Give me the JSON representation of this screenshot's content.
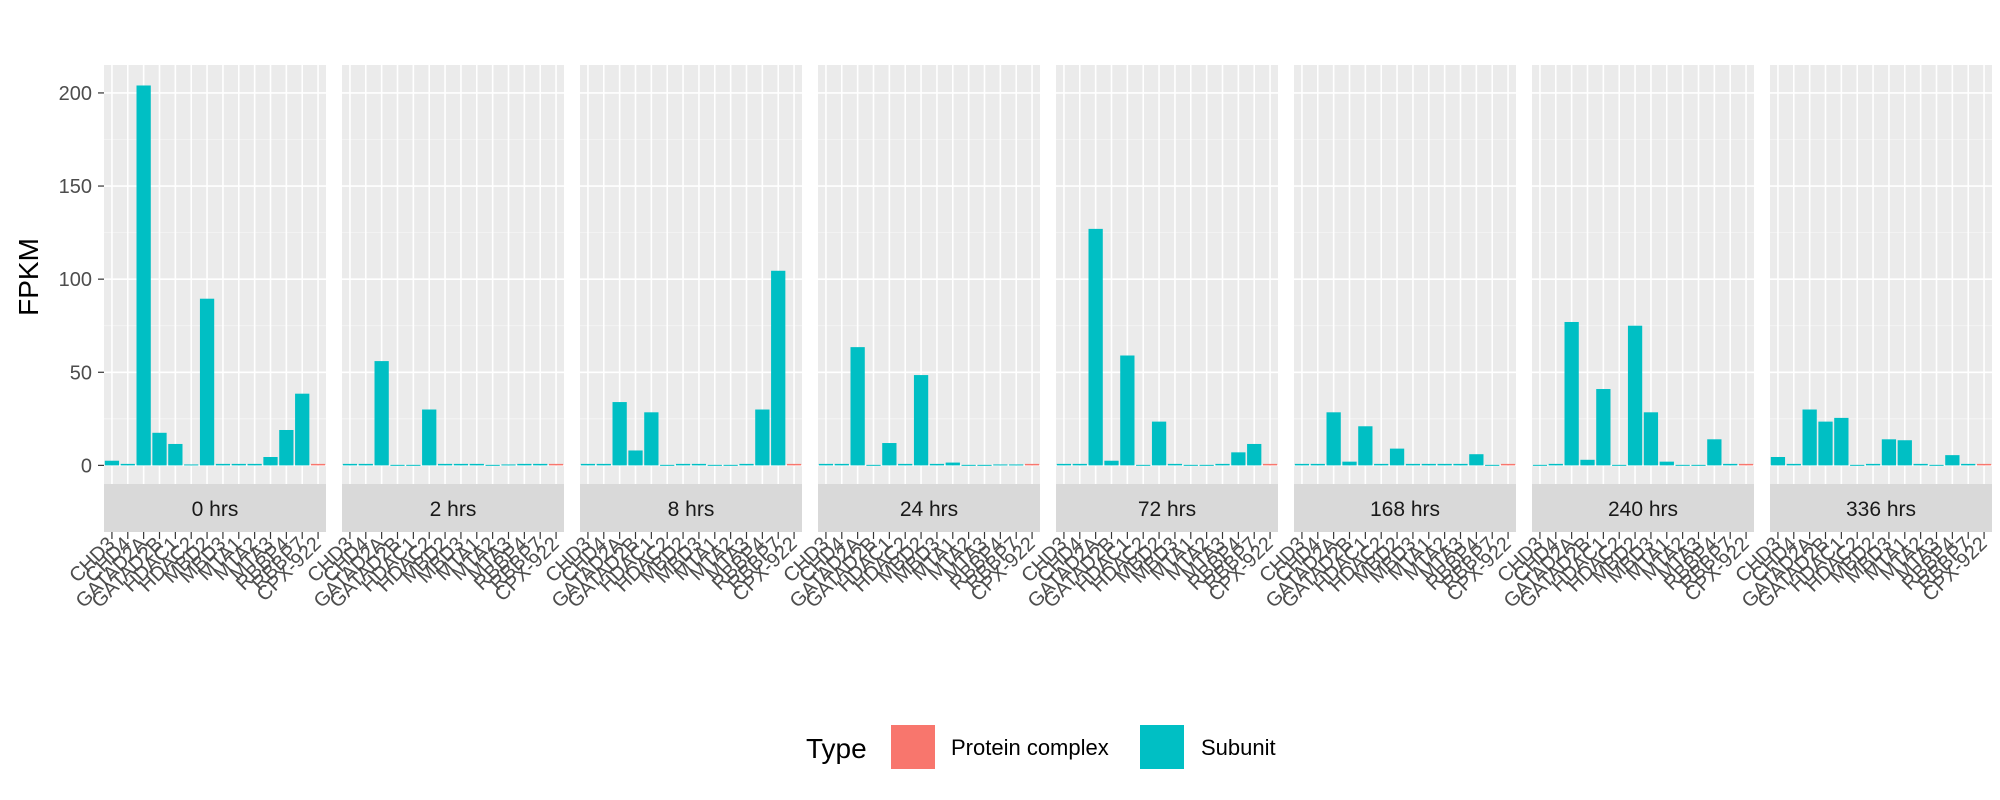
{
  "chart_data": {
    "type": "bar",
    "xlabel": "",
    "ylabel": "FPKM",
    "ylim": [
      -10,
      215
    ],
    "yticks": [
      0,
      50,
      100,
      150,
      200
    ],
    "grid": true,
    "legend_position": "bottom",
    "legend_title": "Type",
    "categories": [
      "CHD3",
      "CHD4",
      "GATAD2A",
      "GATAD2B",
      "HDAC1",
      "HDAC2",
      "MBD2",
      "MBD3",
      "MTA1",
      "MTA2",
      "MTA3",
      "RBBP4",
      "RBBP7",
      "CPX-922"
    ],
    "category_types": [
      "Subunit",
      "Subunit",
      "Subunit",
      "Subunit",
      "Subunit",
      "Subunit",
      "Subunit",
      "Subunit",
      "Subunit",
      "Subunit",
      "Subunit",
      "Subunit",
      "Subunit",
      "Protein complex"
    ],
    "types": [
      {
        "name": "Protein complex",
        "color": "#F8766D"
      },
      {
        "name": "Subunit",
        "color": "#00BFC4"
      }
    ],
    "panels": [
      {
        "label": "0 hrs",
        "values": [
          2.5,
          0.8,
          204,
          17.5,
          11.5,
          0.5,
          89.5,
          0.8,
          0.8,
          0.8,
          4.5,
          19,
          38.5,
          0.8
        ]
      },
      {
        "label": "2 hrs",
        "values": [
          0.8,
          0.8,
          56,
          0.3,
          0.3,
          30,
          0.8,
          0.8,
          0.8,
          0.3,
          0.5,
          0.8,
          0.8,
          0.8
        ]
      },
      {
        "label": "8 hrs",
        "values": [
          0.8,
          0.8,
          34,
          8,
          28.5,
          0.3,
          0.8,
          0.8,
          0.3,
          0.3,
          0.8,
          30,
          104.5,
          0.8
        ]
      },
      {
        "label": "24 hrs",
        "values": [
          0.8,
          0.8,
          63.5,
          0.3,
          12,
          0.8,
          48.5,
          0.8,
          1.5,
          0.3,
          0.3,
          0.5,
          0.5,
          0.8
        ]
      },
      {
        "label": "72 hrs",
        "values": [
          0.8,
          0.8,
          127,
          2.5,
          59,
          0.3,
          23.5,
          0.8,
          0.3,
          0.3,
          0.8,
          7,
          11.5,
          0.8
        ]
      },
      {
        "label": "168 hrs",
        "values": [
          0.8,
          0.8,
          28.5,
          2,
          21,
          0.8,
          9,
          0.8,
          0.8,
          0.8,
          0.8,
          6,
          0.3,
          0.8
        ]
      },
      {
        "label": "240 hrs",
        "values": [
          0.3,
          0.8,
          77,
          3,
          41,
          0.3,
          75,
          28.5,
          2,
          0.3,
          0.3,
          14,
          0.8,
          0.8
        ]
      },
      {
        "label": "336 hrs",
        "values": [
          4.5,
          0.8,
          30,
          23.5,
          25.5,
          0.3,
          0.8,
          14,
          13.5,
          0.8,
          0.3,
          5.5,
          0.8,
          0.8
        ]
      }
    ]
  }
}
